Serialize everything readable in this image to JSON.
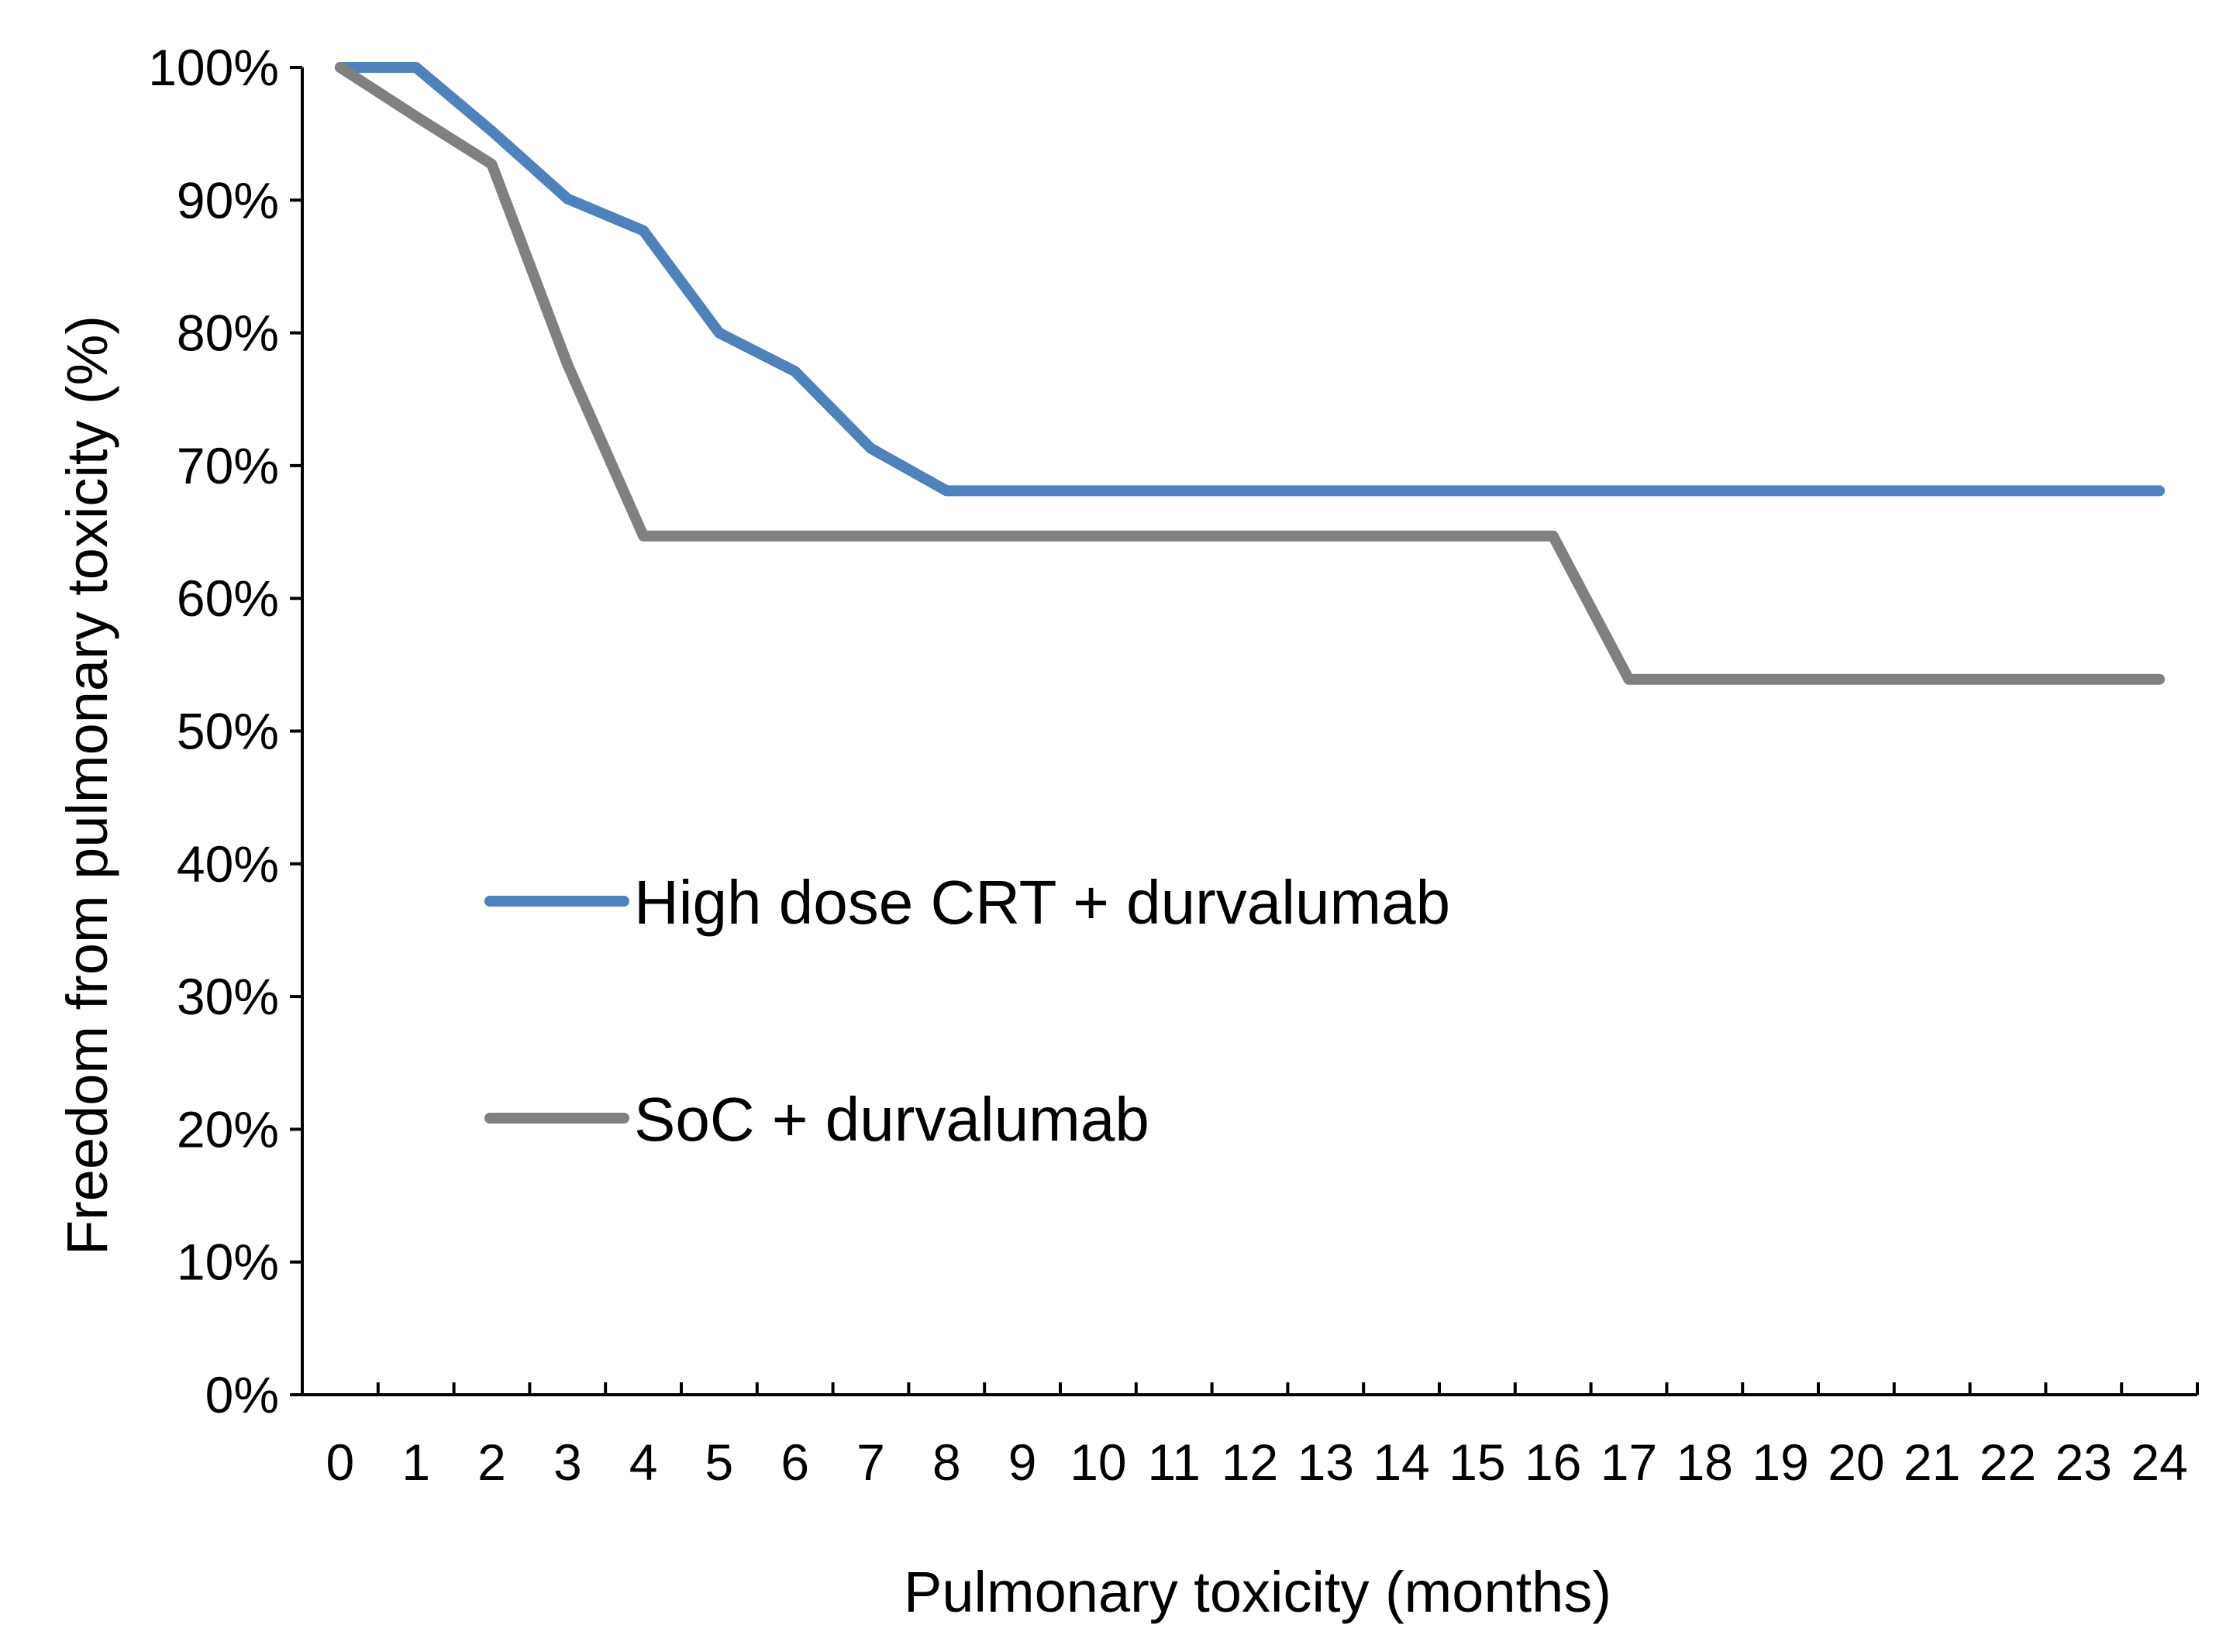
{
  "chart_data": {
    "type": "line",
    "title": "",
    "xlabel": "Pulmonary toxicity (months)",
    "ylabel": "Freedom from pulmonary toxicity (%)",
    "xlim": [
      -0.5,
      24.5
    ],
    "ylim": [
      0,
      100
    ],
    "grid": false,
    "x_ticks": [
      "0",
      "1",
      "2",
      "3",
      "4",
      "5",
      "6",
      "7",
      "8",
      "9",
      "10",
      "11",
      "12",
      "13",
      "14",
      "15",
      "16",
      "17",
      "18",
      "19",
      "20",
      "21",
      "22",
      "23",
      "24"
    ],
    "y_ticks": [
      "0%",
      "10%",
      "20%",
      "30%",
      "40%",
      "50%",
      "60%",
      "70%",
      "80%",
      "90%",
      "100%"
    ],
    "legend_position": "center-left",
    "series": [
      {
        "name": "High dose CRT + durvalumab",
        "color": "#4F81BD",
        "x": [
          0,
          1,
          2,
          3,
          4,
          5,
          6,
          7,
          8,
          9,
          10,
          11,
          12,
          13,
          14,
          15,
          16,
          17,
          18,
          19,
          20,
          21,
          22,
          23,
          24
        ],
        "values": [
          100,
          100,
          95.2,
          90.1,
          87.7,
          80,
          77.1,
          71.3,
          68.1,
          68.1,
          68.1,
          68.1,
          68.1,
          68.1,
          68.1,
          68.1,
          68.1,
          68.1,
          68.1,
          68.1,
          68.1,
          68.1,
          68.1,
          68.1,
          68.1
        ]
      },
      {
        "name": "SoC + durvalumab",
        "color": "#808080",
        "x": [
          0,
          1,
          2,
          3,
          4,
          5,
          6,
          7,
          8,
          9,
          10,
          11,
          12,
          13,
          14,
          15,
          16,
          17,
          18,
          19,
          20,
          21,
          22,
          23,
          24
        ],
        "values": [
          100,
          96.3,
          92.7,
          77.6,
          64.7,
          64.7,
          64.7,
          64.7,
          64.7,
          64.7,
          64.7,
          64.7,
          64.7,
          64.7,
          64.7,
          64.7,
          64.7,
          53.9,
          53.9,
          53.9,
          53.9,
          53.9,
          53.9,
          53.9,
          53.9
        ]
      }
    ]
  }
}
